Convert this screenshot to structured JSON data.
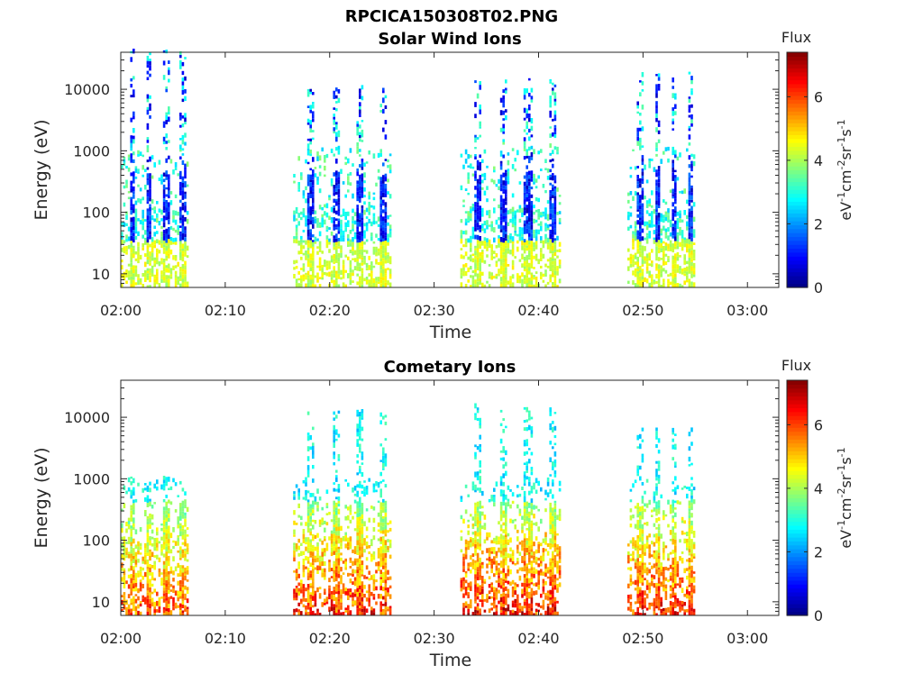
{
  "figure_title": "RPCICA150308T02.PNG",
  "chart_data": [
    {
      "type": "heatmap",
      "title": "Solar Wind Ions",
      "xlabel": "Time",
      "ylabel": "Energy (eV)",
      "x_ticks": [
        "02:00",
        "02:10",
        "02:20",
        "02:30",
        "02:40",
        "02:50",
        "03:00"
      ],
      "x_range": [
        "02:00",
        "03:03"
      ],
      "y_scale": "log",
      "y_ticks": [
        "10",
        "100",
        "1000",
        "10000"
      ],
      "y_range": [
        6,
        40000
      ],
      "colorbar": {
        "title": "Flux",
        "label": "eV-1cm-2sr-1s-1",
        "ticks": [
          "0",
          "2",
          "4",
          "6"
        ],
        "range": [
          0,
          7.4
        ]
      },
      "bursts": [
        {
          "start_min": 0.0,
          "end_min": 6.3,
          "e_low": 6,
          "e_high": 40000,
          "peak_flux": 3.5
        },
        {
          "start_min": 16.5,
          "end_min": 25.8,
          "e_low": 6,
          "e_high": 10000,
          "peak_flux": 3.5
        },
        {
          "start_min": 32.5,
          "end_min": 42.0,
          "e_low": 6,
          "e_high": 14000,
          "peak_flux": 4.0
        },
        {
          "start_min": 48.5,
          "end_min": 55.0,
          "e_low": 6,
          "e_high": 20000,
          "peak_flux": 3.5
        }
      ]
    },
    {
      "type": "heatmap",
      "title": "Cometary Ions",
      "xlabel": "Time",
      "ylabel": "Energy (eV)",
      "x_ticks": [
        "02:00",
        "02:10",
        "02:20",
        "02:30",
        "02:40",
        "02:50",
        "03:00"
      ],
      "x_range": [
        "02:00",
        "03:03"
      ],
      "y_scale": "log",
      "y_ticks": [
        "10",
        "100",
        "1000",
        "10000"
      ],
      "y_range": [
        6,
        40000
      ],
      "colorbar": {
        "title": "Flux",
        "label": "eV-1cm-2sr-1s-1",
        "ticks": [
          "0",
          "2",
          "4",
          "6"
        ],
        "range": [
          0,
          7.4
        ]
      },
      "bursts": [
        {
          "start_min": 0.0,
          "end_min": 6.3,
          "e_low": 6,
          "e_high": 1000,
          "peak_flux": 6.5
        },
        {
          "start_min": 16.5,
          "end_min": 25.8,
          "e_low": 6,
          "e_high": 12000,
          "peak_flux": 6.8
        },
        {
          "start_min": 32.5,
          "end_min": 42.0,
          "e_low": 6,
          "e_high": 14000,
          "peak_flux": 7.0
        },
        {
          "start_min": 48.5,
          "end_min": 55.0,
          "e_low": 6,
          "e_high": 6000,
          "peak_flux": 6.8
        }
      ]
    }
  ]
}
